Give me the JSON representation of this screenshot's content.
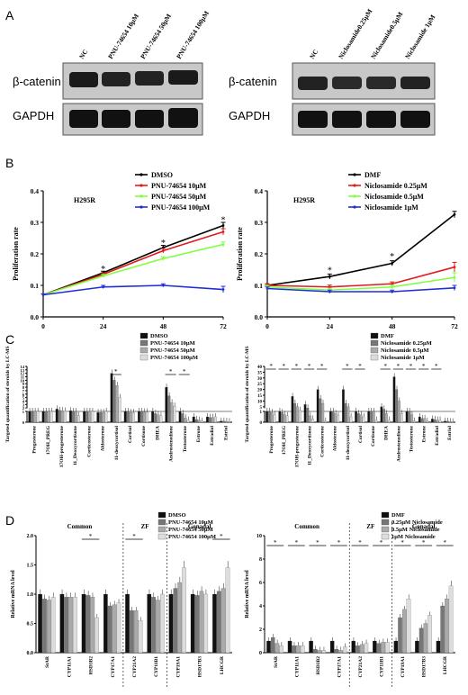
{
  "panels": {
    "A": "A",
    "B": "B",
    "C": "C",
    "D": "D"
  },
  "western_blot": [
    {
      "lanes": [
        "NC",
        "PNU-74654 10μM",
        "PNU-74654 50μM",
        "PNU-74654 100μM"
      ],
      "rows": [
        "β-catenin",
        "GAPDH"
      ]
    },
    {
      "lanes": [
        "NC",
        "Niclosamide0.25μM",
        "Niclosamide0.5μM",
        "Niclosamide 1μM"
      ],
      "rows": [
        "β-catenin",
        "GAPDH"
      ]
    }
  ],
  "chart_data": [
    {
      "type": "line",
      "panel": "B-left",
      "cell_label": "H295R",
      "ylabel": "Proliferation rate",
      "x": [
        0,
        24,
        48,
        72
      ],
      "xticks": [
        "0",
        "24",
        "48",
        "72"
      ],
      "ylim": [
        0,
        0.4
      ],
      "yticks": [
        "0.0",
        "0.1",
        "0.2",
        "0.3",
        "0.4"
      ],
      "series": [
        {
          "name": "DMSO",
          "color": "#000000",
          "values": [
            0.07,
            0.14,
            0.22,
            0.29
          ],
          "err": [
            0.003,
            0.005,
            0.007,
            0.01
          ]
        },
        {
          "name": "PNU-74654 10μM",
          "color": "#e31a1c",
          "values": [
            0.07,
            0.135,
            0.21,
            0.27
          ],
          "err": [
            0.003,
            0.005,
            0.007,
            0.01
          ]
        },
        {
          "name": "PNU-74654 50μM",
          "color": "#7fff3f",
          "values": [
            0.07,
            0.13,
            0.185,
            0.23
          ],
          "err": [
            0.003,
            0.005,
            0.006,
            0.008
          ]
        },
        {
          "name": "PNU-74654 100μM",
          "color": "#1f2fd6",
          "values": [
            0.07,
            0.095,
            0.1,
            0.087
          ],
          "err": [
            0.003,
            0.005,
            0.005,
            0.01
          ]
        }
      ],
      "stars": [
        {
          "x": 24,
          "y": 0.148
        },
        {
          "x": 48,
          "y": 0.232
        },
        {
          "x": 72,
          "y": 0.305
        }
      ]
    },
    {
      "type": "line",
      "panel": "B-right",
      "cell_label": "H295R",
      "ylabel": "Proliferation rate",
      "x": [
        0,
        24,
        48,
        72
      ],
      "xticks": [
        "0",
        "24",
        "48",
        "72"
      ],
      "ylim": [
        0,
        0.4
      ],
      "yticks": [
        "0.0",
        "0.1",
        "0.2",
        "0.3",
        "0.4"
      ],
      "series": [
        {
          "name": "DMF",
          "color": "#000000",
          "values": [
            0.1,
            0.128,
            0.17,
            0.325
          ],
          "err": [
            0.005,
            0.008,
            0.008,
            0.01
          ]
        },
        {
          "name": "Niclosamide 0.25μM",
          "color": "#e31a1c",
          "values": [
            0.1,
            0.095,
            0.105,
            0.158
          ],
          "err": [
            0.005,
            0.006,
            0.006,
            0.015
          ]
        },
        {
          "name": "Niclosamide 0.5μM",
          "color": "#7fff3f",
          "values": [
            0.095,
            0.085,
            0.095,
            0.125
          ],
          "err": [
            0.005,
            0.006,
            0.006,
            0.015
          ]
        },
        {
          "name": "Niclosamide 1μM",
          "color": "#1f2fd6",
          "values": [
            0.09,
            0.08,
            0.08,
            0.092
          ],
          "err": [
            0.005,
            0.005,
            0.005,
            0.008
          ]
        }
      ],
      "stars": [
        {
          "x": 24,
          "y": 0.145
        },
        {
          "x": 48,
          "y": 0.188
        }
      ]
    },
    {
      "type": "bar",
      "panel": "C-left",
      "ylabel": "Targeted quantification of steroids by LC-MS",
      "categories": [
        "Progesterone",
        "17OH_PREG",
        "17OH-progesterone",
        "11_Deoxycortisone",
        "Corticosterone",
        "Aldosterone",
        "11-deoxycortisol",
        "Cortisol",
        "Cortisone",
        "DHEA",
        "Androstenedione",
        "Testosterone",
        "Estrone",
        "Estradiol",
        "Estriol"
      ],
      "yticks": [
        "0",
        "1",
        "2",
        "3",
        "4",
        "5",
        "6",
        "7",
        "8",
        "9",
        "10",
        "11",
        "12",
        "13",
        "14"
      ],
      "series": [
        {
          "name": "DMSO",
          "color": "#111111",
          "values": [
            1,
            1,
            1.7,
            1.2,
            1,
            0.9,
            12,
            1,
            1,
            1,
            8,
            1,
            0.5,
            0.5,
            0.1
          ]
        },
        {
          "name": "PNU-74654 10μM",
          "color": "#777777",
          "values": [
            1,
            1,
            1.3,
            1,
            1,
            0.9,
            10,
            1,
            1,
            0.8,
            5.5,
            0.8,
            0.25,
            0.45,
            0.1
          ]
        },
        {
          "name": "PNU-74654 50μM",
          "color": "#aaaaaa",
          "values": [
            1,
            1,
            1.2,
            1,
            1,
            0.9,
            8.5,
            0.9,
            0.95,
            0.7,
            3.5,
            0.4,
            0.2,
            0.45,
            0.08
          ]
        },
        {
          "name": "PNU-74654 100μM",
          "color": "#dddddd",
          "values": [
            1,
            1,
            1.1,
            0.6,
            1,
            1,
            5,
            0.9,
            0.95,
            0.6,
            2.5,
            0.2,
            0.1,
            0.5,
            0.05
          ]
        }
      ],
      "sig": [
        6,
        10,
        11
      ]
    },
    {
      "type": "bar",
      "panel": "C-right",
      "ylabel": "Targeted quantification of steroids by LC-MS",
      "categories": [
        "Progesterone",
        "17OH_PREG",
        "17OH-progesterone",
        "11_Deoxycortisone",
        "Corticosterone",
        "Aldosterone",
        "11-deoxycortisol",
        "Cortisol",
        "Cortisone",
        "DHEA",
        "Androstenedione",
        "Testosterone",
        "Estrone",
        "Estradiol",
        "Estriol"
      ],
      "yticks": [
        "0",
        "1",
        "5",
        "10",
        "15",
        "20",
        "25",
        "30",
        "35",
        "40"
      ],
      "series": [
        {
          "name": "DMF",
          "color": "#111111",
          "values": [
            1,
            1,
            14,
            7,
            20,
            1,
            20,
            1,
            1,
            5,
            31,
            1,
            0.5,
            0.3,
            0.1
          ]
        },
        {
          "name": "Niclosamide 0.25μM",
          "color": "#777777",
          "values": [
            1,
            0.9,
            8,
            4,
            12,
            1,
            8,
            0.8,
            1,
            3,
            20,
            1,
            0.35,
            0.25,
            0.1
          ]
        },
        {
          "name": "Niclosamide 0.5μM",
          "color": "#aaaaaa",
          "values": [
            0.9,
            0.7,
            5,
            0.6,
            8,
            0.8,
            5,
            0.7,
            1,
            0.8,
            10,
            0.7,
            0.35,
            0.2,
            0.05
          ]
        },
        {
          "name": "Niclosamide 1μM",
          "color": "#dddddd",
          "values": [
            0.7,
            0.6,
            2,
            0.3,
            0.1,
            0.6,
            0.5,
            0.5,
            0.2,
            0.2,
            0.8,
            0.1,
            0.1,
            0.2,
            0.03
          ]
        }
      ],
      "sig": [
        0,
        1,
        2,
        3,
        4,
        6,
        7,
        9,
        10,
        11,
        12,
        13
      ]
    },
    {
      "type": "bar",
      "panel": "D-left",
      "ylabel": "Relative mRNA level",
      "groups": [
        "Common",
        "ZF",
        "Gonadal"
      ],
      "categories": [
        "StAR",
        "CYP11A1",
        "HSD3B2",
        "CYP17A1",
        "CYP21A2",
        "CYP11B1",
        "CYP19A1",
        "HSD17B3",
        "LHCGR"
      ],
      "ylim": [
        0,
        2
      ],
      "yticks": [
        "0.0",
        "0.5",
        "1.0",
        "1.5",
        "2.0"
      ],
      "series": [
        {
          "name": "DMSO",
          "color": "#111111",
          "values": [
            1,
            1,
            1,
            1,
            1,
            1,
            1,
            1,
            1
          ]
        },
        {
          "name": "PNU-74654 10μM",
          "color": "#777777",
          "values": [
            0.92,
            0.95,
            0.98,
            0.8,
            0.72,
            0.95,
            1.1,
            0.98,
            1.05
          ]
        },
        {
          "name": "PNU-74654 50μM",
          "color": "#aaaaaa",
          "values": [
            0.9,
            0.95,
            0.95,
            0.82,
            0.72,
            0.9,
            1.2,
            1.05,
            1.1
          ]
        },
        {
          "name": "PNU-74654 100μM",
          "color": "#dddddd",
          "values": [
            0.95,
            0.95,
            0.6,
            0.85,
            0.55,
            1,
            1.45,
            1,
            1.45
          ]
        }
      ],
      "sig": [
        2,
        4,
        8
      ]
    },
    {
      "type": "bar",
      "panel": "D-right",
      "ylabel": "Relative mRNA level",
      "groups": [
        "Common",
        "ZF",
        "Gonadal"
      ],
      "categories": [
        "StAR",
        "CYP11A1",
        "HSD3B2",
        "CYP17A1",
        "CYP21A2",
        "CYP11B1",
        "CYP19A1",
        "HSD17B3",
        "LHCGR"
      ],
      "ylim": [
        0,
        10
      ],
      "yticks": [
        "0",
        "2",
        "4",
        "6",
        "8",
        "10"
      ],
      "series": [
        {
          "name": "DMF",
          "color": "#111111",
          "values": [
            1,
            1,
            1,
            1,
            1,
            1,
            1,
            1,
            1
          ]
        },
        {
          "name": "0.25μM Niclosamide",
          "color": "#777777",
          "values": [
            1.3,
            0.6,
            0.3,
            0.3,
            0.6,
            0.8,
            3,
            2.1,
            4
          ]
        },
        {
          "name": "0.5μM Niclosamide",
          "color": "#aaaaaa",
          "values": [
            0.8,
            0.6,
            0.2,
            0.2,
            0.7,
            0.9,
            3.7,
            2.5,
            4.6
          ]
        },
        {
          "name": "1μM Niclosamide",
          "color": "#dddddd",
          "values": [
            0.6,
            0.6,
            0.2,
            0.5,
            0.8,
            0.9,
            4.6,
            3.2,
            5.7
          ]
        }
      ],
      "sig": [
        0,
        1,
        2,
        3,
        4,
        5,
        6,
        7,
        8
      ]
    }
  ]
}
